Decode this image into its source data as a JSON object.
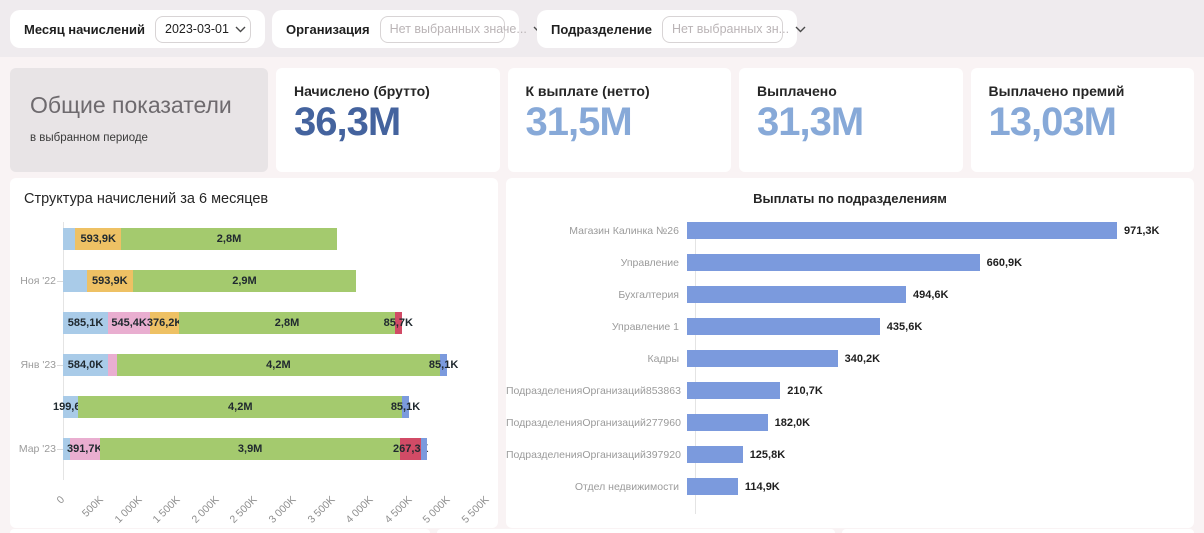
{
  "filters": [
    {
      "label": "Месяц начислений",
      "value": "2023-03-01",
      "is_placeholder": false
    },
    {
      "label": "Организация",
      "value": "Нет выбранных значе...",
      "is_placeholder": true
    },
    {
      "label": "Подразделение",
      "value": "Нет выбранных зн...",
      "is_placeholder": true
    }
  ],
  "kpi": {
    "summary_title": "Общие показатели",
    "summary_subtitle": "в выбранном периоде",
    "cards": [
      {
        "label": "Начислено (брутто)",
        "value": "36,3М",
        "color": "#44639e"
      },
      {
        "label": "К выплате (нетто)",
        "value": "31,5М",
        "color": "#87a9d8"
      },
      {
        "label": "Выплачено",
        "value": "31,3М",
        "color": "#87a9d8"
      },
      {
        "label": "Выплачено премий",
        "value": "13,03М",
        "color": "#87a9d8"
      }
    ]
  },
  "colors": {
    "lightblue": "#a9cbe8",
    "orange": "#eec164",
    "green": "#a4ca6e",
    "pink": "#e9aed0",
    "red": "#d14b66",
    "blue": "#7b9add",
    "topbar_bg": "#efebee",
    "page_bg": "#f9f3f4"
  },
  "chart_data": [
    {
      "type": "bar",
      "orientation": "horizontal",
      "stacked": true,
      "title": "Структура начислений за 6 месяцев",
      "xlabel": "",
      "ylabel": "",
      "xlim_k": [
        0,
        5500
      ],
      "x_ticks": [
        "0",
        "500K",
        "1 000K",
        "1 500K",
        "2 000K",
        "2 500K",
        "3 000K",
        "3 500K",
        "4 000K",
        "4 500K",
        "5 000K",
        "5 500K"
      ],
      "categories_visible": [
        "",
        "Ноя '22",
        "",
        "Янв '23",
        "",
        "Мар '23"
      ],
      "rows": [
        {
          "label": "",
          "segments": [
            {
              "color": "lightblue",
              "value_k": 160,
              "label": ""
            },
            {
              "color": "orange",
              "value_k": 593.9,
              "label": "593,9K"
            },
            {
              "color": "green",
              "value_k": 2800,
              "label": "2,8M"
            }
          ]
        },
        {
          "label": "Ноя '22",
          "segments": [
            {
              "color": "lightblue",
              "value_k": 310,
              "label": ""
            },
            {
              "color": "orange",
              "value_k": 593.9,
              "label": "593,9K"
            },
            {
              "color": "green",
              "value_k": 2900,
              "label": "2,9M"
            }
          ]
        },
        {
          "label": "",
          "segments": [
            {
              "color": "lightblue",
              "value_k": 585.1,
              "label": "585,1K"
            },
            {
              "color": "pink",
              "value_k": 545.4,
              "label": "545,4K"
            },
            {
              "color": "orange",
              "value_k": 376.2,
              "label": "376,2K"
            },
            {
              "color": "green",
              "value_k": 2800,
              "label": "2,8M"
            },
            {
              "color": "red",
              "value_k": 85.7,
              "label": "85,7K"
            }
          ]
        },
        {
          "label": "Янв '23",
          "segments": [
            {
              "color": "lightblue",
              "value_k": 584,
              "label": "584,0K"
            },
            {
              "color": "pink",
              "value_k": 110,
              "label": ""
            },
            {
              "color": "green",
              "value_k": 4200,
              "label": "4,2M"
            },
            {
              "color": "blue",
              "value_k": 85.1,
              "label": "85,1K"
            }
          ]
        },
        {
          "label": "",
          "segments": [
            {
              "color": "lightblue",
              "value_k": 199.6,
              "label": "199,6K"
            },
            {
              "color": "green",
              "value_k": 4200,
              "label": "4,2M"
            },
            {
              "color": "blue",
              "value_k": 85.1,
              "label": "85,1K"
            }
          ]
        },
        {
          "label": "Мар '23",
          "segments": [
            {
              "color": "lightblue",
              "value_k": 85,
              "label": ""
            },
            {
              "color": "pink",
              "value_k": 391.7,
              "label": "391,7K"
            },
            {
              "color": "green",
              "value_k": 3900,
              "label": "3,9M"
            },
            {
              "color": "red",
              "value_k": 267.3,
              "label": "267,3K"
            },
            {
              "color": "blue",
              "value_k": 75,
              "label": ""
            }
          ]
        }
      ]
    },
    {
      "type": "bar",
      "orientation": "horizontal",
      "title": "Выплаты по подразделениям",
      "xlabel": "",
      "ylabel": "",
      "bar_color": "#7b9add",
      "categories": [
        "Магазин Калинка №26",
        "Управление",
        "Бухгалтерия",
        "Управление 1",
        "Кадры",
        "ПодразделенияОрганизаций853863",
        "ПодразделенияОрганизаций277960",
        "ПодразделенияОрганизаций397920",
        "Отдел недвижимости"
      ],
      "values_k": [
        971.3,
        660.9,
        494.6,
        435.6,
        340.2,
        210.7,
        182.0,
        125.8,
        114.9
      ],
      "value_labels": [
        "971,3K",
        "660,9K",
        "494,6K",
        "435,6K",
        "340,2K",
        "210,7K",
        "182,0K",
        "125,8K",
        "114,9K"
      ]
    }
  ]
}
